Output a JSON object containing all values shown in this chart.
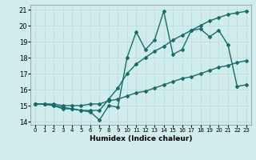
{
  "x": [
    0,
    1,
    2,
    3,
    4,
    5,
    6,
    7,
    8,
    9,
    10,
    11,
    12,
    13,
    14,
    15,
    16,
    17,
    18,
    19,
    20,
    21,
    22,
    23
  ],
  "line1": [
    15.1,
    15.1,
    15.0,
    14.8,
    14.8,
    14.7,
    14.6,
    14.1,
    15.0,
    14.9,
    18.0,
    19.6,
    18.5,
    19.1,
    20.9,
    18.2,
    18.5,
    19.7,
    19.8,
    19.3,
    19.7,
    18.8,
    16.2,
    16.3
  ],
  "line2": [
    15.1,
    15.1,
    15.1,
    15.0,
    15.0,
    15.0,
    15.1,
    15.1,
    15.3,
    15.4,
    15.6,
    15.8,
    15.9,
    16.1,
    16.3,
    16.5,
    16.7,
    16.8,
    17.0,
    17.2,
    17.4,
    17.5,
    17.7,
    17.8
  ],
  "line3": [
    15.1,
    15.1,
    15.0,
    14.9,
    14.8,
    14.7,
    14.7,
    14.7,
    15.4,
    16.1,
    17.0,
    17.6,
    18.0,
    18.4,
    18.7,
    19.1,
    19.4,
    19.7,
    20.0,
    20.3,
    20.5,
    20.7,
    20.8,
    20.9
  ],
  "ylim": [
    13.8,
    21.3
  ],
  "xlim": [
    -0.5,
    23.5
  ],
  "yticks": [
    14,
    15,
    16,
    17,
    18,
    19,
    20,
    21
  ],
  "xticks": [
    0,
    1,
    2,
    3,
    4,
    5,
    6,
    7,
    8,
    9,
    10,
    11,
    12,
    13,
    14,
    15,
    16,
    17,
    18,
    19,
    20,
    21,
    22,
    23
  ],
  "xlabel": "Humidex (Indice chaleur)",
  "line_color": "#1a6b6b",
  "bg_color": "#d0ecec",
  "grid_color": "#b8d8d8",
  "marker": "D",
  "marker_size": 2,
  "linewidth": 1.0,
  "title": ""
}
